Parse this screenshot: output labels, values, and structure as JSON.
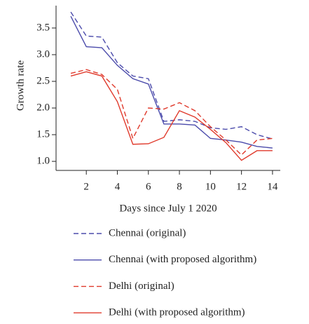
{
  "chart_data": {
    "type": "line",
    "x_label": "Days since July 1 2020",
    "y_label": "Growth rate",
    "x": [
      1,
      2,
      3,
      4,
      5,
      6,
      7,
      8,
      9,
      10,
      11,
      12,
      13,
      14
    ],
    "series": [
      {
        "name": "Chennai (original)",
        "color": "#4b4bab",
        "dashed": true,
        "values": [
          3.8,
          3.35,
          3.33,
          2.85,
          2.6,
          2.55,
          1.75,
          1.78,
          1.75,
          1.63,
          1.6,
          1.65,
          1.5,
          1.42
        ]
      },
      {
        "name": "Chennai (with proposed algorithm)",
        "color": "#4b4bab",
        "dashed": false,
        "values": [
          3.72,
          3.15,
          3.13,
          2.8,
          2.55,
          2.45,
          1.7,
          1.7,
          1.68,
          1.43,
          1.4,
          1.36,
          1.28,
          1.25
        ]
      },
      {
        "name": "Delhi (original)",
        "color": "#e03a2c",
        "dashed": true,
        "values": [
          2.65,
          2.72,
          2.63,
          2.35,
          1.43,
          2.0,
          1.98,
          2.1,
          1.95,
          1.65,
          1.4,
          1.12,
          1.4,
          1.43
        ]
      },
      {
        "name": "Delhi (with proposed algorithm)",
        "color": "#e03a2c",
        "dashed": false,
        "values": [
          2.6,
          2.68,
          2.6,
          2.12,
          1.32,
          1.33,
          1.45,
          1.95,
          1.83,
          1.6,
          1.35,
          1.02,
          1.2,
          1.2
        ]
      }
    ],
    "xlim": [
      0.05,
      14.5
    ],
    "ylim": [
      0.83,
      3.92
    ],
    "xticks": [
      2,
      4,
      6,
      8,
      10,
      12,
      14
    ],
    "yticks": [
      {
        "value": 1,
        "label": "1.0"
      },
      1.5,
      {
        "value": 2,
        "label": "2.0"
      },
      2.5,
      {
        "value": 3,
        "label": "3.0"
      },
      3.5
    ],
    "legend": "bottom"
  }
}
